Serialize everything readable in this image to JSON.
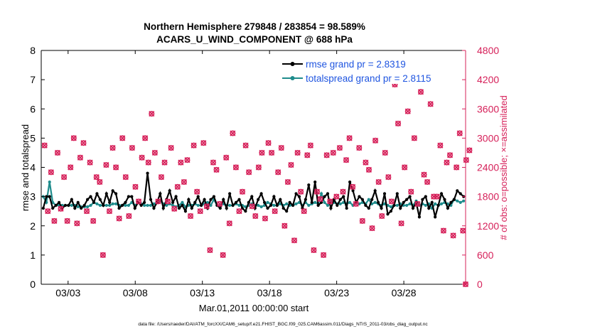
{
  "figure": {
    "title_line1": "Northern Hemisphere 279848 / 283854 = 98.589%",
    "title_line2": "ACARS_U_WIND_COMPONENT @ 688 hPa",
    "xlabel": "Mar.01,2011 00:00:00 start",
    "ylabel_left": "rmse and totalspread",
    "ylabel_right": "# of obs: o=possible; ×=assimilated",
    "footer": "data file: /Users/raeder/DAI/ATM_forcXX/CAM6_setup/f.e21.FHIST_BGC.f09_025.CAM6assim.011/Diags_NTrS_2011-03/obs_diag_output.nc"
  },
  "colors": {
    "rmse": "#000000",
    "spread": "#1f8c8c",
    "obs": "#d6215a",
    "legend_text": "#1f55e0",
    "axis": "#000000"
  },
  "chart_data": {
    "type": "line",
    "x_unit": "days since Mar.01,2011 00:00:00",
    "xlim": [
      0,
      31.6
    ],
    "xticks": [
      2,
      7,
      12,
      17,
      22,
      27
    ],
    "xtick_labels": [
      "03/03",
      "03/08",
      "03/13",
      "03/18",
      "03/23",
      "03/28"
    ],
    "ylim": [
      0,
      8
    ],
    "yticks": [
      0,
      1,
      2,
      3,
      4,
      5,
      6,
      7,
      8
    ],
    "ylim_right": [
      0,
      4800
    ],
    "yticks_right": [
      0,
      600,
      1200,
      1800,
      2400,
      3000,
      3600,
      4200,
      4800
    ],
    "legend": [
      {
        "name": "rmse",
        "label": "rmse grand pr = 2.8319"
      },
      {
        "name": "totalspread",
        "label": "totalspread grand pr = 2.8115"
      }
    ],
    "series": [
      {
        "name": "rmse",
        "axis": "left",
        "values": [
          2.6,
          3.0,
          3.0,
          2.6,
          2.7,
          2.8,
          2.6,
          2.7,
          2.7,
          2.9,
          2.6,
          2.8,
          2.6,
          2.7,
          2.9,
          3.0,
          2.8,
          3.1,
          2.9,
          2.7,
          3.1,
          2.8,
          3.2,
          3.1,
          2.6,
          2.7,
          2.8,
          3.0,
          3.0,
          2.6,
          2.8,
          2.7,
          2.8,
          3.8,
          2.9,
          2.6,
          2.8,
          3.1,
          2.6,
          2.9,
          3.2,
          2.8,
          3.0,
          2.6,
          2.7,
          2.5,
          2.9,
          2.6,
          2.8,
          3.0,
          2.7,
          2.9,
          2.6,
          2.9,
          3.0,
          2.7,
          2.6,
          2.9,
          2.6,
          3.1,
          2.7,
          2.8,
          2.9,
          2.6,
          2.5,
          2.8,
          3.0,
          2.6,
          2.9,
          3.1,
          2.8,
          2.6,
          2.7,
          3.0,
          2.7,
          2.9,
          2.6,
          2.5,
          2.8,
          2.7,
          3.1,
          3.0,
          2.6,
          2.9,
          3.4,
          2.8,
          3.5,
          2.7,
          2.8,
          3.0,
          3.1,
          2.6,
          2.9,
          2.7,
          2.9,
          3.0,
          2.6,
          3.5,
          3.2,
          2.8,
          3.0,
          2.9,
          2.7,
          2.6,
          2.9,
          3.2,
          2.8,
          2.6,
          3.1,
          2.4,
          2.5,
          2.7,
          3.1,
          2.6,
          2.8,
          2.9,
          3.0,
          2.6,
          2.8,
          2.3,
          2.9,
          3.0,
          2.6,
          2.8,
          2.3,
          2.7,
          3.1,
          2.9,
          2.6,
          2.8,
          2.9,
          3.2,
          3.1,
          3.0
        ]
      },
      {
        "name": "totalspread",
        "axis": "left",
        "values": [
          3.0,
          2.8,
          3.5,
          2.8,
          2.7,
          2.7,
          2.7,
          2.7,
          2.7,
          2.7,
          2.7,
          2.65,
          2.65,
          2.65,
          2.65,
          2.7,
          2.8,
          2.75,
          2.7,
          2.7,
          2.7,
          2.7,
          2.75,
          2.75,
          2.7,
          2.7,
          2.7,
          2.7,
          2.8,
          2.7,
          2.8,
          2.75,
          2.7,
          2.7,
          2.7,
          2.75,
          2.8,
          2.85,
          2.75,
          2.7,
          2.75,
          2.7,
          2.65,
          2.7,
          2.8,
          2.65,
          2.7,
          2.7,
          2.75,
          2.7,
          2.7,
          2.75,
          2.8,
          2.7,
          2.9,
          2.7,
          2.7,
          2.75,
          2.7,
          2.7,
          2.7,
          2.75,
          2.7,
          2.7,
          2.65,
          2.7,
          2.75,
          2.7,
          2.7,
          2.65,
          2.7,
          2.8,
          2.75,
          2.7,
          2.7,
          2.75,
          2.7,
          2.75,
          2.7,
          2.7,
          2.75,
          2.8,
          2.7,
          2.8,
          2.7,
          2.75,
          2.8,
          2.75,
          3.1,
          2.8,
          2.7,
          2.85,
          2.8,
          2.75,
          2.75,
          2.8,
          2.75,
          2.8,
          2.7,
          2.8,
          2.75,
          2.8,
          2.75,
          2.9,
          2.75,
          2.8,
          2.75,
          2.7,
          2.75,
          2.7,
          2.65,
          2.7,
          2.7,
          2.75,
          2.7,
          2.7,
          2.75,
          2.7,
          2.85,
          2.7,
          2.75,
          2.7,
          2.75,
          2.6,
          2.75,
          2.7,
          2.75,
          2.8,
          2.75,
          2.7,
          2.9,
          2.85,
          2.8,
          2.85
        ]
      }
    ],
    "obs_counts": {
      "axis": "right",
      "possible": [
        2850,
        1500,
        2300,
        1300,
        2700,
        1550,
        2200,
        1300,
        2400,
        3000,
        1250,
        2600,
        2900,
        1500,
        2500,
        1300,
        2200,
        2100,
        600,
        2450,
        1500,
        2800,
        2400,
        1350,
        3000,
        2200,
        1400,
        2800,
        2000,
        1700,
        2600,
        3000,
        2500,
        3500,
        2700,
        1700,
        2200,
        2500,
        1700,
        2800,
        1550,
        2000,
        2500,
        2100,
        2550,
        1400,
        2850,
        1900,
        1500,
        2900,
        1600,
        700,
        2500,
        2350,
        1650,
        600,
        2600,
        1250,
        3100,
        2400,
        1500,
        1900,
        2850,
        2300,
        1600,
        1400,
        2400,
        2700,
        1350,
        2900,
        2700,
        1500,
        2300,
        2800,
        1200,
        2100,
        2450,
        900,
        2700,
        1900,
        1500,
        2650,
        2850,
        700,
        1900,
        1750,
        600,
        2650,
        1700,
        2700,
        1800,
        2800,
        1900,
        2550,
        3000,
        2000,
        1650,
        2800,
        1300,
        2500,
        2350,
        1150,
        2950,
        2100,
        1400,
        2700,
        2200,
        1700,
        4100,
        3300,
        1250,
        2400,
        3550,
        1900,
        3000,
        1650,
        3950,
        2250,
        2100,
        3700,
        1800,
        1800,
        2850,
        1100,
        2500,
        2650,
        1000,
        2400,
        3100,
        1100,
        2550,
        2750
      ]
    },
    "last_obs_value": 0
  }
}
